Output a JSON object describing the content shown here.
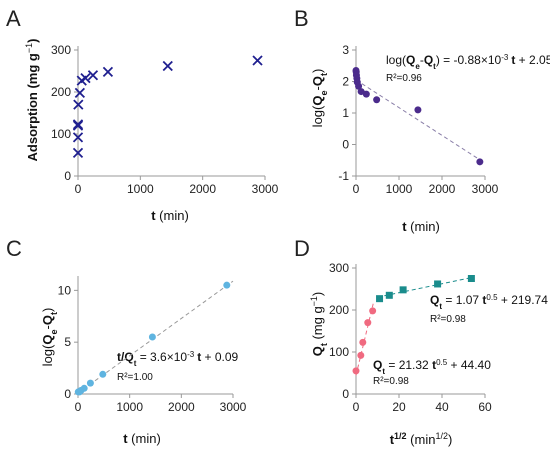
{
  "chart_data": [
    {
      "panel": "A",
      "type": "scatter",
      "marker": "x",
      "color": "#1f1f8f",
      "x": [
        0,
        0,
        0,
        0,
        5,
        30,
        60,
        120,
        240,
        480,
        1440,
        2880
      ],
      "y": [
        55,
        92,
        120,
        123,
        170,
        198,
        227,
        233,
        240,
        248,
        262,
        275
      ],
      "xlabel_bold": "t",
      "xlabel_rest": " (min)",
      "ylabel": "Adsorption (mg g",
      "ylabel_sup": "−1",
      "ylabel_end": ")",
      "xlim": [
        0,
        3000
      ],
      "ylim": [
        0,
        300
      ],
      "xticks": [
        "0",
        "1000",
        "2000",
        "3000"
      ],
      "yticks": [
        "0",
        "100",
        "200",
        "300"
      ]
    },
    {
      "panel": "B",
      "type": "scatter",
      "marker": "circle",
      "color": "#4b2b8c",
      "x": [
        0,
        5,
        10,
        20,
        30,
        60,
        120,
        240,
        480,
        1440,
        2880
      ],
      "y": [
        2.35,
        2.3,
        2.2,
        2.1,
        1.98,
        1.85,
        1.68,
        1.6,
        1.42,
        1.1,
        -0.55
      ],
      "fit": {
        "slope": -0.00088,
        "intercept": 2.05,
        "color": "#8a7fa8"
      },
      "equation": {
        "prefix": "log(",
        "q1": "Q",
        "q1_sub": "e",
        "dash": "-",
        "q2": "Q",
        "q2_sub": "t",
        "rest": ") = -0.88×10",
        "exp": "-3",
        "t": "t",
        "end": " + 2.05"
      },
      "r2": "R²=0.96",
      "xlabel_bold": "t",
      "xlabel_rest": " (min)",
      "ylabel": {
        "prefix": "log(",
        "a": "Q",
        "a_sub": "e",
        "dash": "-",
        "b": "Q",
        "b_sub": "t",
        "end": ")"
      },
      "xlim": [
        0,
        3000
      ],
      "ylim": [
        -1,
        3
      ],
      "xticks": [
        "0",
        "1000",
        "2000",
        "3000"
      ],
      "yticks": [
        "-1",
        "0",
        "1",
        "2",
        "3"
      ]
    },
    {
      "panel": "C",
      "type": "scatter",
      "marker": "circle",
      "color": "#5fb4e0",
      "x": [
        5,
        30,
        60,
        120,
        240,
        480,
        1440,
        2880
      ],
      "y": [
        0.2,
        0.2,
        0.35,
        0.55,
        1.05,
        1.9,
        5.5,
        10.5
      ],
      "fit": {
        "slope": 0.0036,
        "intercept": 0.09,
        "color": "#999999"
      },
      "equation": {
        "t": "t",
        "slash": "/",
        "q": "Q",
        "q_sub": "t",
        "rest": " = 3.6×10",
        "exp": "-3",
        "t2": "t",
        "end": " + 0.09"
      },
      "r2": "R²=1.00",
      "xlabel_bold": "t",
      "xlabel_rest": " (min)",
      "ylabel": {
        "prefix": "log(",
        "a": "Q",
        "a_sub": "e",
        "dash": "-",
        "b": "Q",
        "b_sub": "t",
        "end": ")"
      },
      "xlim": [
        0,
        3000
      ],
      "ylim": [
        0,
        11
      ],
      "xticks": [
        "0",
        "1000",
        "2000",
        "3000"
      ],
      "yticks": [
        "0",
        "5",
        "10"
      ]
    },
    {
      "panel": "D",
      "type": "scatter",
      "series": [
        {
          "marker": "circle",
          "color": "#f06a80",
          "x": [
            0,
            2.24,
            3.16,
            5.48,
            7.75
          ],
          "y": [
            55,
            92,
            123,
            170,
            198
          ],
          "fit": {
            "slope": 21.32,
            "intercept": 44.4,
            "x_range": [
              0,
              8
            ],
            "color": "#f06a80"
          },
          "equation": {
            "q": "Q",
            "q_sub": "t",
            "rest": " = 21.32 ",
            "t": "t",
            "exp": "0.5",
            "end": " + 44.40"
          },
          "r2": "R²=0.98"
        },
        {
          "marker": "square",
          "color": "#1a8c8c",
          "x": [
            10.95,
            15.49,
            21.91,
            37.95,
            53.67
          ],
          "y": [
            227,
            235,
            248,
            262,
            275
          ],
          "fit": {
            "slope": 1.07,
            "intercept": 219.74,
            "x_range": [
              10,
              55
            ],
            "color": "#1a8c8c"
          },
          "equation": {
            "q": "Q",
            "q_sub": "t",
            "rest": " = 1.07 ",
            "t": "t",
            "exp": "0.5",
            "end": " + 219.74"
          },
          "r2": "R²=0.98"
        }
      ],
      "xlabel": {
        "t": "t",
        "t_sup": "1/2",
        "rest": " (min",
        "rest_sup": "1/2",
        "end": ")"
      },
      "ylabel": {
        "q": "Q",
        "q_sub": "t",
        "rest": " (mg g",
        "sup": "−1",
        "end": ")"
      },
      "xlim": [
        0,
        60
      ],
      "ylim": [
        0,
        300
      ],
      "xticks": [
        "0",
        "20",
        "40",
        "60"
      ],
      "yticks": [
        "0",
        "100",
        "200",
        "300"
      ]
    }
  ]
}
